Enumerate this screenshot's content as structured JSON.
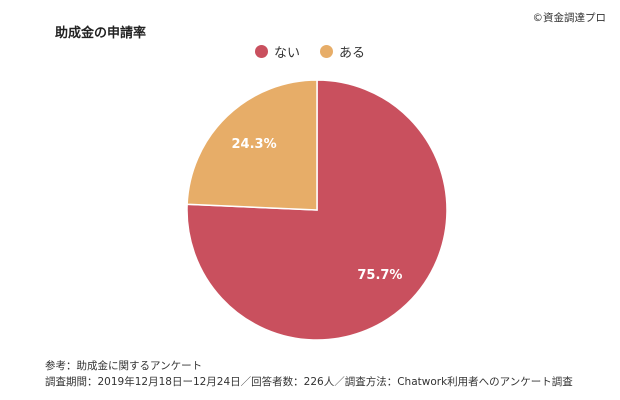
{
  "header": {
    "title": "助成金の申請率",
    "credit": "©資金調達プロ"
  },
  "notes": {
    "line1": "参考：助成金に関するアンケート",
    "line2": "調査期間：2019年12月18日ー12月24日／回答者数：226人／調査方法：Chatwork利用者へのアンケート調査"
  },
  "chart_data": {
    "type": "pie",
    "title": "助成金の申請率",
    "legend_position": "top",
    "slices": [
      {
        "name": "ない",
        "value": 75.7,
        "label": "75.7%",
        "color": "#c9505e"
      },
      {
        "name": "ある",
        "value": 24.3,
        "label": "24.3%",
        "color": "#e7ad68"
      }
    ]
  }
}
